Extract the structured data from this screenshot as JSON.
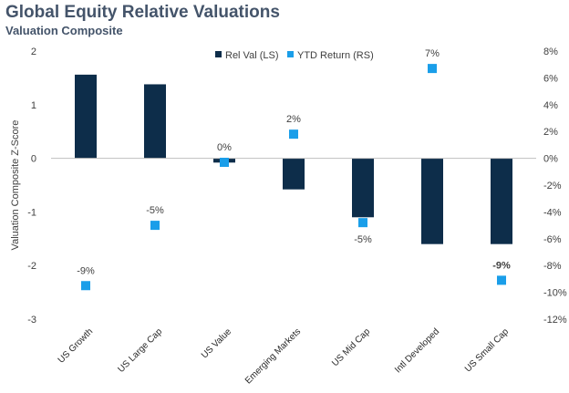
{
  "header": {
    "title": "Global Equity Relative Valuations",
    "subtitle": "Valuation Composite"
  },
  "chart_data": {
    "type": "bar",
    "title": "Global Equity Relative Valuations",
    "subtitle": "Valuation Composite",
    "categories": [
      "US Growth",
      "US Large Cap",
      "US Value",
      "Emerging Markets",
      "US Mid Cap",
      "Intl Developed",
      "US Small Cap"
    ],
    "series": [
      {
        "name": "Rel Val (LS)",
        "kind": "bar",
        "axis": "left",
        "color": "#0d2d4a",
        "values": [
          1.56,
          1.38,
          -0.08,
          -0.58,
          -1.1,
          -1.6,
          -1.6
        ]
      },
      {
        "name": "YTD Return (RS)",
        "kind": "marker",
        "axis": "right",
        "color": "#1a9ee9",
        "values": [
          -9.5,
          -5.0,
          -0.3,
          1.8,
          -4.8,
          6.7,
          -9.1
        ],
        "labels": [
          "-9%",
          "-5%",
          "0%",
          "2%",
          "-5%",
          "7%",
          "-9%"
        ]
      }
    ],
    "ylabel": "Valuation Composite Z-Score",
    "ylim": [
      -3,
      2
    ],
    "yticks": [
      "2",
      "1",
      "0",
      "-1",
      "-2",
      "-3"
    ],
    "y2lim": [
      -12,
      8
    ],
    "y2ticks": [
      "8%",
      "6%",
      "4%",
      "2%",
      "0%",
      "-2%",
      "-4%",
      "-6%",
      "-8%",
      "-10%",
      "-12%"
    ],
    "legend": "top-center",
    "grid": false
  }
}
